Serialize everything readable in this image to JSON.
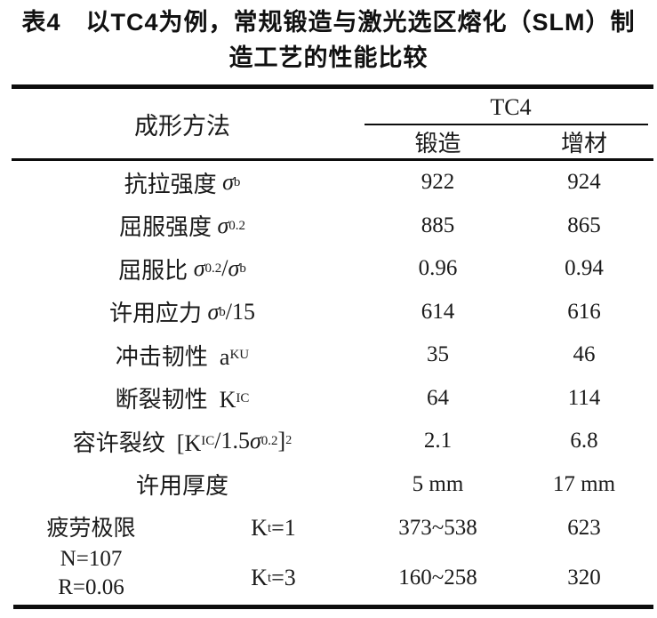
{
  "title": {
    "line1": "表4　以TC4为例，常规锻造与激光选区熔化（SLM）制",
    "line2": "造工艺的性能比较"
  },
  "header": {
    "method": "成形方法",
    "group": "TC4",
    "col_forge": "锻造",
    "col_additive": "增材"
  },
  "rows": [
    {
      "name": "tensile-strength",
      "label": [
        [
          "t",
          "抗拉强度 "
        ],
        [
          "i",
          "σ"
        ],
        [
          "sub",
          "b"
        ]
      ],
      "forge": "922",
      "additive": "924"
    },
    {
      "name": "yield-strength",
      "label": [
        [
          "t",
          "屈服强度 "
        ],
        [
          "i",
          "σ"
        ],
        [
          "sub",
          "0.2"
        ]
      ],
      "forge": "885",
      "additive": "865"
    },
    {
      "name": "yield-ratio",
      "label": [
        [
          "t",
          "屈服比 "
        ],
        [
          "i",
          "σ"
        ],
        [
          "sub",
          "0.2"
        ],
        [
          "t",
          "/"
        ],
        [
          "i",
          "σ"
        ],
        [
          "sub",
          "b"
        ]
      ],
      "forge": "0.96",
      "additive": "0.94"
    },
    {
      "name": "allowable-stress",
      "label": [
        [
          "t",
          "许用应力 "
        ],
        [
          "i",
          "σ"
        ],
        [
          "sub",
          "b"
        ],
        [
          "t",
          "/15"
        ]
      ],
      "forge": "614",
      "additive": "616"
    },
    {
      "name": "impact-toughness",
      "label": [
        [
          "t",
          "冲击韧性  a"
        ],
        [
          "sub",
          "KU"
        ]
      ],
      "forge": "35",
      "additive": "46"
    },
    {
      "name": "fracture-toughness",
      "label": [
        [
          "t",
          "断裂韧性  K"
        ],
        [
          "sub",
          "IC"
        ]
      ],
      "forge": "64",
      "additive": "114"
    },
    {
      "name": "allowable-crack",
      "label": [
        [
          "t",
          "容许裂纹  [K"
        ],
        [
          "sub",
          "IC"
        ],
        [
          "t",
          "/1.5"
        ],
        [
          "i",
          "σ"
        ],
        [
          "sub",
          "0.2"
        ],
        [
          "t",
          "]"
        ],
        [
          "sup",
          "2"
        ]
      ],
      "forge": "2.1",
      "additive": "6.8"
    },
    {
      "name": "allowable-thickness",
      "label": [
        [
          "t",
          "许用厚度"
        ]
      ],
      "forge": "5 mm",
      "additive": "17 mm"
    }
  ],
  "fatigue": {
    "label_lines": [
      "疲劳极限",
      "N=107",
      "R=0.06"
    ],
    "rows": [
      {
        "name": "kt1",
        "k": [
          [
            "t",
            "K"
          ],
          [
            "sub",
            "t"
          ],
          [
            "t",
            "=1"
          ]
        ],
        "forge": "373~538",
        "additive": "623"
      },
      {
        "name": "kt3",
        "k": [
          [
            "t",
            "K"
          ],
          [
            "sub",
            "t"
          ],
          [
            "t",
            "=3"
          ]
        ],
        "forge": "160~258",
        "additive": "320"
      }
    ]
  },
  "colors": {
    "text": "#1a1a1a",
    "rule": "#0d0d0d",
    "background": "#ffffff"
  }
}
